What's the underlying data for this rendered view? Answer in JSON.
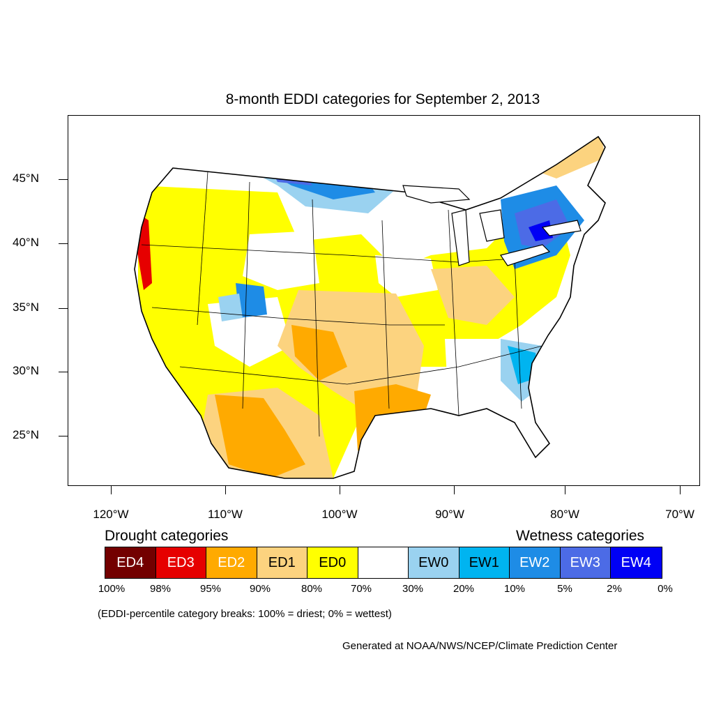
{
  "title": "8-month EDDI categories for September 2, 2013",
  "axes": {
    "lat_labels": [
      "45°N",
      "40°N",
      "35°N",
      "30°N",
      "25°N"
    ],
    "lon_labels": [
      "120°W",
      "110°W",
      "100°W",
      "90°W",
      "80°W",
      "70°W"
    ]
  },
  "legend": {
    "drought_heading": "Drought categories",
    "wetness_heading": "Wetness categories",
    "categories": [
      {
        "label": "ED4",
        "color": "#730000",
        "text_color": "#ffffff"
      },
      {
        "label": "ED3",
        "color": "#e60000",
        "text_color": "#ffffff"
      },
      {
        "label": "ED2",
        "color": "#ffaa00",
        "text_color": "#ffffff"
      },
      {
        "label": "ED1",
        "color": "#fcd37f",
        "text_color": "#000000"
      },
      {
        "label": "ED0",
        "color": "#ffff00",
        "text_color": "#000000"
      },
      {
        "label": "",
        "color": "#ffffff",
        "text_color": "#000000"
      },
      {
        "label": "EW0",
        "color": "#9ad2f0",
        "text_color": "#000000"
      },
      {
        "label": "EW1",
        "color": "#00b4f0",
        "text_color": "#000000"
      },
      {
        "label": "EW2",
        "color": "#1e8ce6",
        "text_color": "#ffffff"
      },
      {
        "label": "EW3",
        "color": "#4c6be6",
        "text_color": "#ffffff"
      },
      {
        "label": "EW4",
        "color": "#0000f5",
        "text_color": "#ffffff"
      }
    ],
    "breaks": [
      "100%",
      "98%",
      "95%",
      "90%",
      "80%",
      "70%",
      "30%",
      "20%",
      "10%",
      "5%",
      "2%",
      "0%"
    ]
  },
  "note": "(EDDI-percentile category breaks: 100% = driest; 0% = wettest)",
  "credit": "Generated at NOAA/NWS/NCEP/Climate Prediction Center"
}
